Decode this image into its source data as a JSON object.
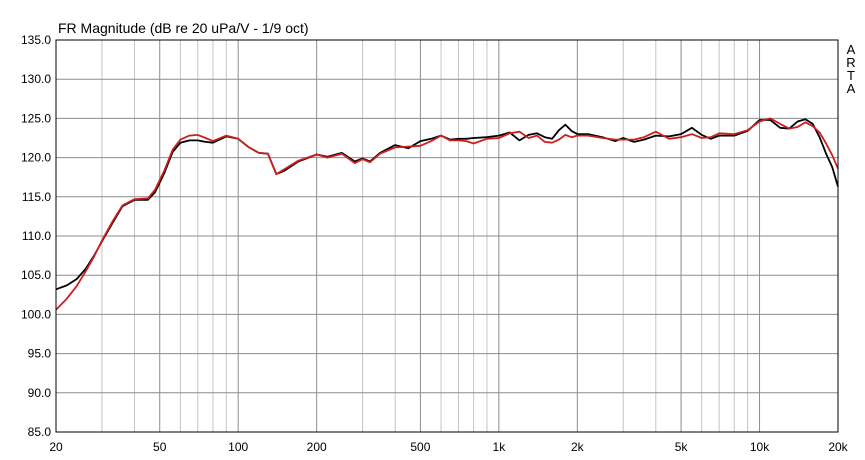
{
  "chart_data": {
    "type": "line",
    "title": "FR Magnitude (dB re 20 uPa/V - 1/9 oct)",
    "xlabel": "",
    "ylabel": "",
    "xscale": "log",
    "xlim": [
      20,
      20000
    ],
    "ylim": [
      85,
      135
    ],
    "grid": true,
    "x_tick_values": [
      20,
      50,
      100,
      200,
      500,
      1000,
      2000,
      5000,
      10000,
      20000
    ],
    "x_tick_labels": [
      "20",
      "50",
      "100",
      "200",
      "500",
      "1k",
      "2k",
      "5k",
      "10k",
      "20k"
    ],
    "y_tick_labels": [
      "135.0",
      "130.0",
      "125.0",
      "120.0",
      "115.0",
      "110.0",
      "105.0",
      "100.0",
      "95.0",
      "90.0",
      "85.0"
    ],
    "annotation": [
      "A",
      "R",
      "T",
      "A"
    ],
    "series": [
      {
        "color": "#000000",
        "x": [
          20,
          22,
          24,
          26,
          28,
          30,
          33,
          36,
          40,
          45,
          48,
          52,
          56,
          60,
          65,
          70,
          75,
          80,
          90,
          100,
          110,
          120,
          130,
          140,
          150,
          170,
          200,
          220,
          250,
          280,
          300,
          320,
          350,
          400,
          450,
          500,
          550,
          600,
          650,
          700,
          750,
          800,
          900,
          1000,
          1100,
          1200,
          1300,
          1400,
          1500,
          1600,
          1700,
          1800,
          1900,
          2000,
          2200,
          2500,
          2800,
          3000,
          3300,
          3600,
          4000,
          4500,
          5000,
          5500,
          6000,
          6500,
          7000,
          8000,
          9000,
          10000,
          11000,
          12000,
          13000,
          14000,
          15000,
          16000,
          17000,
          18000,
          19000,
          20000
        ],
        "y": [
          103.2,
          103.7,
          104.5,
          105.8,
          107.5,
          109.3,
          111.7,
          113.8,
          114.6,
          114.6,
          115.6,
          118.0,
          120.7,
          121.9,
          122.2,
          122.2,
          122.0,
          121.9,
          122.7,
          122.4,
          121.3,
          120.6,
          120.5,
          117.9,
          118.3,
          119.5,
          120.4,
          120.1,
          120.6,
          119.5,
          119.9,
          119.5,
          120.6,
          121.6,
          121.2,
          122.1,
          122.4,
          122.8,
          122.3,
          122.4,
          122.4,
          122.5,
          122.6,
          122.8,
          123.2,
          122.2,
          122.9,
          123.1,
          122.6,
          122.4,
          123.5,
          124.2,
          123.4,
          123.0,
          123.0,
          122.6,
          122.1,
          122.5,
          122.0,
          122.3,
          122.8,
          122.7,
          123.0,
          123.8,
          122.9,
          122.4,
          122.8,
          122.8,
          123.4,
          124.8,
          124.8,
          123.8,
          123.7,
          124.6,
          124.9,
          124.3,
          122.6,
          120.5,
          118.8,
          116.3
        ]
      },
      {
        "color": "#cc2020",
        "x": [
          20,
          22,
          24,
          26,
          28,
          30,
          33,
          36,
          40,
          45,
          48,
          52,
          56,
          60,
          65,
          70,
          75,
          80,
          90,
          100,
          110,
          120,
          130,
          140,
          150,
          170,
          200,
          220,
          250,
          280,
          300,
          320,
          350,
          400,
          450,
          500,
          550,
          600,
          650,
          700,
          750,
          800,
          900,
          1000,
          1100,
          1200,
          1300,
          1400,
          1500,
          1600,
          1700,
          1800,
          1900,
          2000,
          2200,
          2500,
          2800,
          3000,
          3300,
          3600,
          4000,
          4500,
          5000,
          5500,
          6000,
          6500,
          7000,
          8000,
          9000,
          10000,
          11000,
          12000,
          13000,
          14000,
          15000,
          16000,
          17000,
          18000,
          19000,
          20000
        ],
        "y": [
          100.6,
          102.0,
          103.6,
          105.5,
          107.4,
          109.4,
          111.9,
          113.9,
          114.7,
          114.8,
          115.9,
          118.3,
          121.0,
          122.3,
          122.8,
          122.9,
          122.5,
          122.1,
          122.8,
          122.4,
          121.3,
          120.6,
          120.5,
          117.9,
          118.5,
          119.6,
          120.4,
          120.0,
          120.5,
          119.3,
          119.8,
          119.4,
          120.5,
          121.3,
          121.4,
          121.5,
          122.1,
          122.8,
          122.2,
          122.2,
          122.1,
          121.8,
          122.4,
          122.5,
          123.1,
          123.3,
          122.5,
          122.8,
          122.0,
          121.9,
          122.3,
          122.9,
          122.6,
          122.8,
          122.8,
          122.5,
          122.3,
          122.3,
          122.3,
          122.6,
          123.3,
          122.4,
          122.6,
          123.0,
          122.5,
          122.6,
          123.1,
          123.0,
          123.5,
          124.6,
          125.0,
          124.3,
          123.7,
          123.9,
          124.5,
          124.0,
          123.2,
          121.8,
          120.3,
          118.6
        ]
      }
    ]
  }
}
